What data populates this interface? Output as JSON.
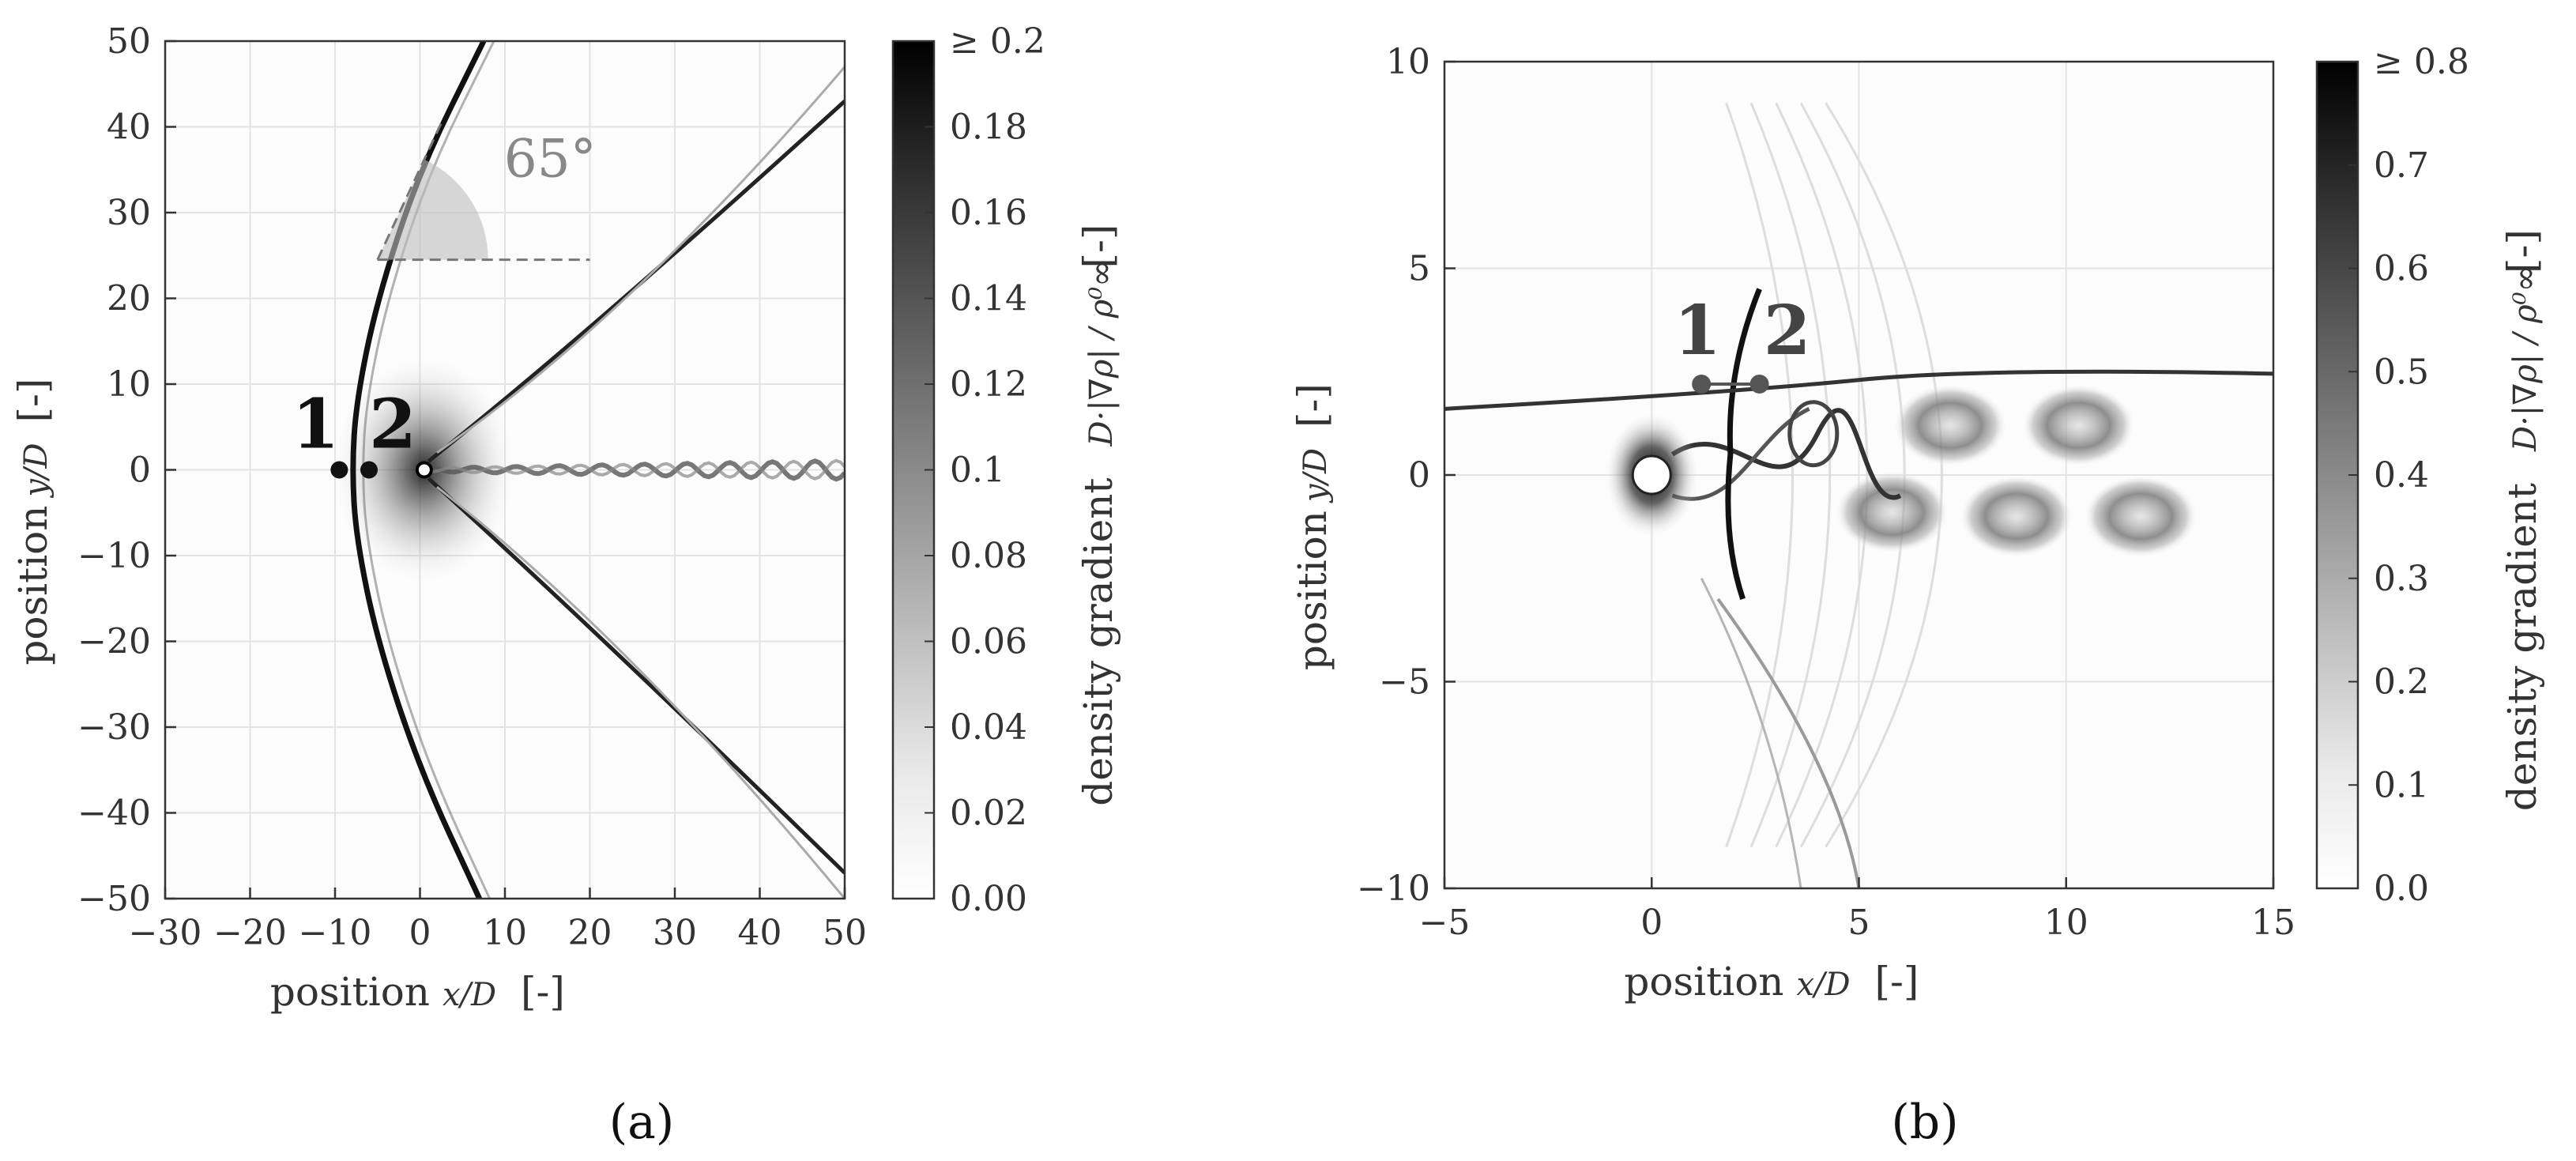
{
  "chart_data": [
    {
      "panel": "(a)",
      "type": "heatmap",
      "xlabel": "position",
      "xlabel_math": "x/D",
      "xunit": "[-]",
      "ylabel": "position",
      "ylabel_math": "y/D",
      "yunit": "[-]",
      "xlim": [
        -30,
        50
      ],
      "ylim": [
        -50,
        50
      ],
      "xticks": [
        "−30",
        "−20",
        "−10",
        "0",
        "10",
        "20",
        "30",
        "40",
        "50"
      ],
      "xtick_values": [
        -30,
        -20,
        -10,
        0,
        10,
        20,
        30,
        40,
        50
      ],
      "yticks": [
        "50",
        "40",
        "30",
        "20",
        "10",
        "0",
        "−10",
        "−20",
        "−30",
        "−40",
        "−50"
      ],
      "ytick_values": [
        50,
        40,
        30,
        20,
        10,
        0,
        -10,
        -20,
        -30,
        -40,
        -50
      ],
      "grid": true,
      "colorbar": {
        "label": "density gradient",
        "label_math": "D·|∇ρ| / ρ⁰∞",
        "unit": "[-]",
        "range": [
          0,
          0.2
        ],
        "ticks": [
          "≥ 0.2",
          "0.18",
          "0.16",
          "0.14",
          "0.12",
          "0.1",
          "0.08",
          "0.06",
          "0.04",
          "0.02",
          "0.00"
        ],
        "tick_values": [
          0.2,
          0.18,
          0.16,
          0.14,
          0.12,
          0.1,
          0.08,
          0.06,
          0.04,
          0.02,
          0.0
        ],
        "colormap": "white-to-black"
      },
      "points": [
        {
          "label": "1",
          "x": -9.5,
          "y": 0
        },
        {
          "label": "2",
          "x": -6,
          "y": 0
        }
      ],
      "shock_front": [
        {
          "x": 7.5,
          "y": 50
        },
        {
          "x": 0,
          "y": 35
        },
        {
          "x": -5,
          "y": 20
        },
        {
          "x": -7.5,
          "y": 8
        },
        {
          "x": -8,
          "y": 0
        },
        {
          "x": -7.5,
          "y": -8
        },
        {
          "x": -5,
          "y": -20
        },
        {
          "x": 0,
          "y": -35
        },
        {
          "x": 7,
          "y": -50
        }
      ],
      "angle_annotation": {
        "text": "65°",
        "vertex": {
          "x": -5,
          "y": 24.5
        },
        "ref_end_x": 20,
        "angle_deg": 65
      },
      "caption": "(a)"
    },
    {
      "panel": "(b)",
      "type": "heatmap",
      "xlabel": "position",
      "xlabel_math": "x/D",
      "xunit": "[-]",
      "ylabel": "position",
      "ylabel_math": "y/D",
      "yunit": "[-]",
      "xlim": [
        -5,
        15
      ],
      "ylim": [
        -10,
        10
      ],
      "xticks": [
        "−5",
        "0",
        "5",
        "10",
        "15"
      ],
      "xtick_values": [
        -5,
        0,
        5,
        10,
        15
      ],
      "yticks": [
        "10",
        "5",
        "0",
        "−5",
        "−10"
      ],
      "ytick_values": [
        10,
        5,
        0,
        -5,
        -10
      ],
      "grid": true,
      "colorbar": {
        "label": "density gradient",
        "label_math": "D·|∇ρ| / ρ⁰∞",
        "unit": "[-]",
        "range": [
          0,
          0.8
        ],
        "ticks": [
          "≥ 0.8",
          "0.7",
          "0.6",
          "0.5",
          "0.4",
          "0.3",
          "0.2",
          "0.1",
          "0.0"
        ],
        "tick_values": [
          0.8,
          0.7,
          0.6,
          0.5,
          0.4,
          0.3,
          0.2,
          0.1,
          0.0
        ],
        "colormap": "white-to-black"
      },
      "points": [
        {
          "label": "1",
          "x": 1.2,
          "y": 2.2
        },
        {
          "label": "2",
          "x": 2.6,
          "y": 2.2
        }
      ],
      "vortices": [
        {
          "x": 7.2,
          "y": 1.2
        },
        {
          "x": 10.3,
          "y": 1.2
        },
        {
          "x": 5.8,
          "y": -0.9
        },
        {
          "x": 8.8,
          "y": -1.0
        },
        {
          "x": 11.8,
          "y": -1.0
        }
      ],
      "caption": "(b)"
    }
  ],
  "colors": {
    "axis": "#333333",
    "grid": "#e3e3e3",
    "shock": "#111111",
    "marker_a": "#111111",
    "marker_b": "#555555",
    "annotation": "#888888"
  }
}
